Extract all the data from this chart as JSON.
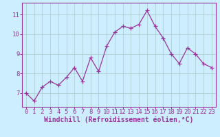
{
  "x": [
    0,
    1,
    2,
    3,
    4,
    5,
    6,
    7,
    8,
    9,
    10,
    11,
    12,
    13,
    14,
    15,
    16,
    17,
    18,
    19,
    20,
    21,
    22,
    23
  ],
  "y": [
    7.0,
    6.6,
    7.3,
    7.6,
    7.4,
    7.8,
    8.3,
    7.6,
    8.8,
    8.1,
    9.4,
    10.1,
    10.4,
    10.3,
    10.5,
    11.2,
    10.4,
    9.8,
    9.0,
    8.5,
    9.3,
    9.0,
    8.5,
    8.3
  ],
  "line_color": "#993399",
  "marker_color": "#993399",
  "bg_color": "#cceeff",
  "grid_color": "#aacccc",
  "xlabel": "Windchill (Refroidissement éolien,°C)",
  "ylim": [
    6.3,
    11.6
  ],
  "xlim": [
    -0.5,
    23.5
  ],
  "yticks": [
    7,
    8,
    9,
    10,
    11
  ],
  "xticks": [
    0,
    1,
    2,
    3,
    4,
    5,
    6,
    7,
    8,
    9,
    10,
    11,
    12,
    13,
    14,
    15,
    16,
    17,
    18,
    19,
    20,
    21,
    22,
    23
  ],
  "axis_color": "#993399",
  "tick_fontsize": 6.5,
  "xlabel_fontsize": 7.0,
  "linewidth": 0.9,
  "markersize": 2.2
}
